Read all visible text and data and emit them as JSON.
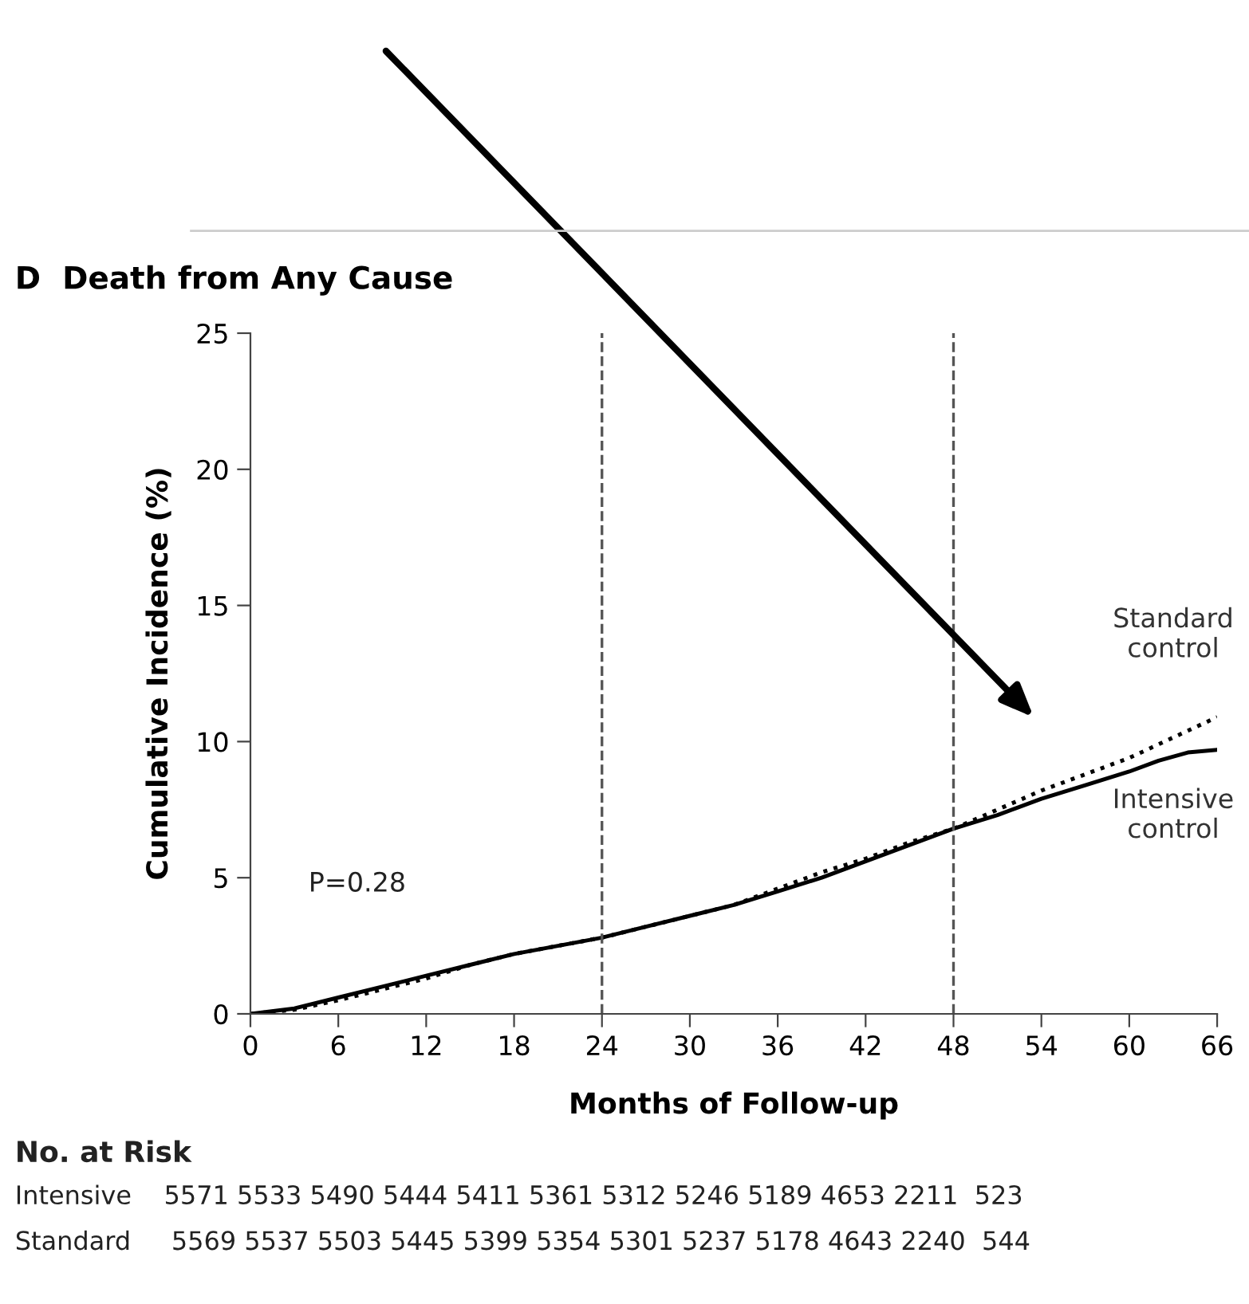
{
  "chart_data": {
    "type": "line",
    "title": "D  Death from Any Cause",
    "xlabel": "Months of Follow-up",
    "ylabel": "Cumulative Incidence (%)",
    "xlim": [
      0,
      66
    ],
    "xticks": [
      0,
      6,
      12,
      18,
      24,
      30,
      36,
      42,
      48,
      54,
      60,
      66
    ],
    "ylim": [
      0,
      25
    ],
    "yticks": [
      0,
      5,
      10,
      15,
      20,
      25
    ],
    "grid": false,
    "legend": false,
    "x": [
      0,
      3,
      6,
      9,
      12,
      15,
      18,
      21,
      24,
      27,
      30,
      33,
      36,
      39,
      42,
      45,
      48,
      51,
      54,
      57,
      60,
      62,
      64,
      66
    ],
    "series": [
      {
        "name": "Standard\ncontrol",
        "color": "#000000",
        "line_style": "dotted",
        "values": [
          0,
          0.15,
          0.5,
          0.9,
          1.3,
          1.8,
          2.2,
          2.5,
          2.8,
          3.2,
          3.6,
          4.0,
          4.6,
          5.2,
          5.7,
          6.3,
          6.8,
          7.5,
          8.2,
          8.8,
          9.4,
          9.9,
          10.4,
          10.9
        ]
      },
      {
        "name": "Intensive\ncontrol",
        "color": "#000000",
        "line_style": "solid",
        "values": [
          0,
          0.2,
          0.6,
          1.0,
          1.4,
          1.8,
          2.2,
          2.5,
          2.8,
          3.2,
          3.6,
          4.0,
          4.5,
          5.0,
          5.6,
          6.2,
          6.8,
          7.3,
          7.9,
          8.4,
          8.9,
          9.3,
          9.6,
          9.7
        ]
      }
    ],
    "ref_lines": [
      {
        "axis": "x",
        "value": 24,
        "color": "#555555",
        "line_style": "dashed"
      },
      {
        "axis": "x",
        "value": 48,
        "color": "#555555",
        "line_style": "dashed"
      }
    ],
    "annotations": [
      "P=0.28",
      "No. at Risk",
      "Intensive    5571 5533 5490 5444 5411 5361 5312 5246 5189 4653 2211  523",
      "Standard     5569 5537 5503 5445 5399 5354 5301 5237 5178 4643 2240  544"
    ]
  }
}
